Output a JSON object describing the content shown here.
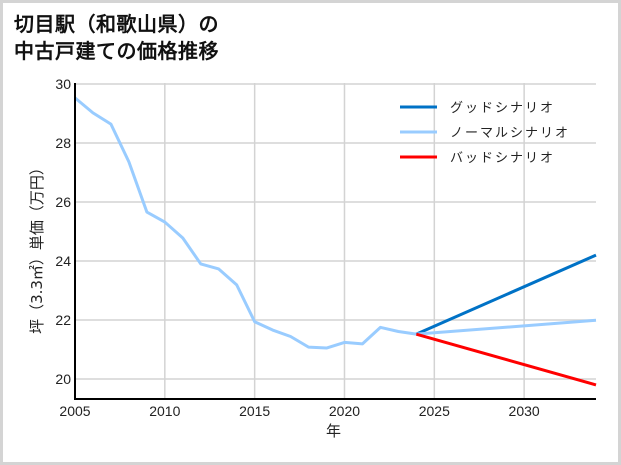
{
  "title_line1": "切目駅（和歌山県）の",
  "title_line2": "中古戸建ての価格推移",
  "chart_data": {
    "type": "line",
    "title": "切目駅（和歌山県）の中古戸建ての価格推移",
    "xlabel": "年",
    "ylabel": "坪（3.3㎡）単価（万円）",
    "xlim": [
      2005,
      2034
    ],
    "ylim": [
      19.4,
      30
    ],
    "xticks": [
      2005,
      2010,
      2015,
      2020,
      2025,
      2030
    ],
    "yticks": [
      20,
      22,
      24,
      26,
      28,
      30
    ],
    "grid": true,
    "legend_position": "upper right",
    "series": [
      {
        "name": "ノーマルシナリオ",
        "color": "#99ccff",
        "x": [
          2005,
          2006,
          2007,
          2008,
          2009,
          2010,
          2011,
          2012,
          2013,
          2014,
          2015,
          2016,
          2017,
          2018,
          2019,
          2020,
          2021,
          2022,
          2023,
          2024
        ],
        "values": [
          29.53,
          29.02,
          28.64,
          27.36,
          25.66,
          25.32,
          24.78,
          23.9,
          23.73,
          23.19,
          21.94,
          21.66,
          21.44,
          21.08,
          21.05,
          21.24,
          21.19,
          21.75,
          21.61,
          21.52
        ]
      },
      {
        "name": "グッドシナリオ",
        "color": "#0072c6",
        "x": [
          2024,
          2034
        ],
        "values": [
          21.52,
          24.2
        ]
      },
      {
        "name": "ノーマルシナリオ",
        "color": "#99ccff",
        "x": [
          2024,
          2034
        ],
        "values": [
          21.52,
          21.99
        ]
      },
      {
        "name": "バッドシナリオ",
        "color": "#ff0000",
        "x": [
          2024,
          2034
        ],
        "values": [
          21.52,
          19.8
        ]
      }
    ],
    "legend": [
      {
        "label": "グッドシナリオ",
        "color": "#0072c6"
      },
      {
        "label": "ノーマルシナリオ",
        "color": "#99ccff"
      },
      {
        "label": "バッドシナリオ",
        "color": "#ff0000"
      }
    ]
  }
}
